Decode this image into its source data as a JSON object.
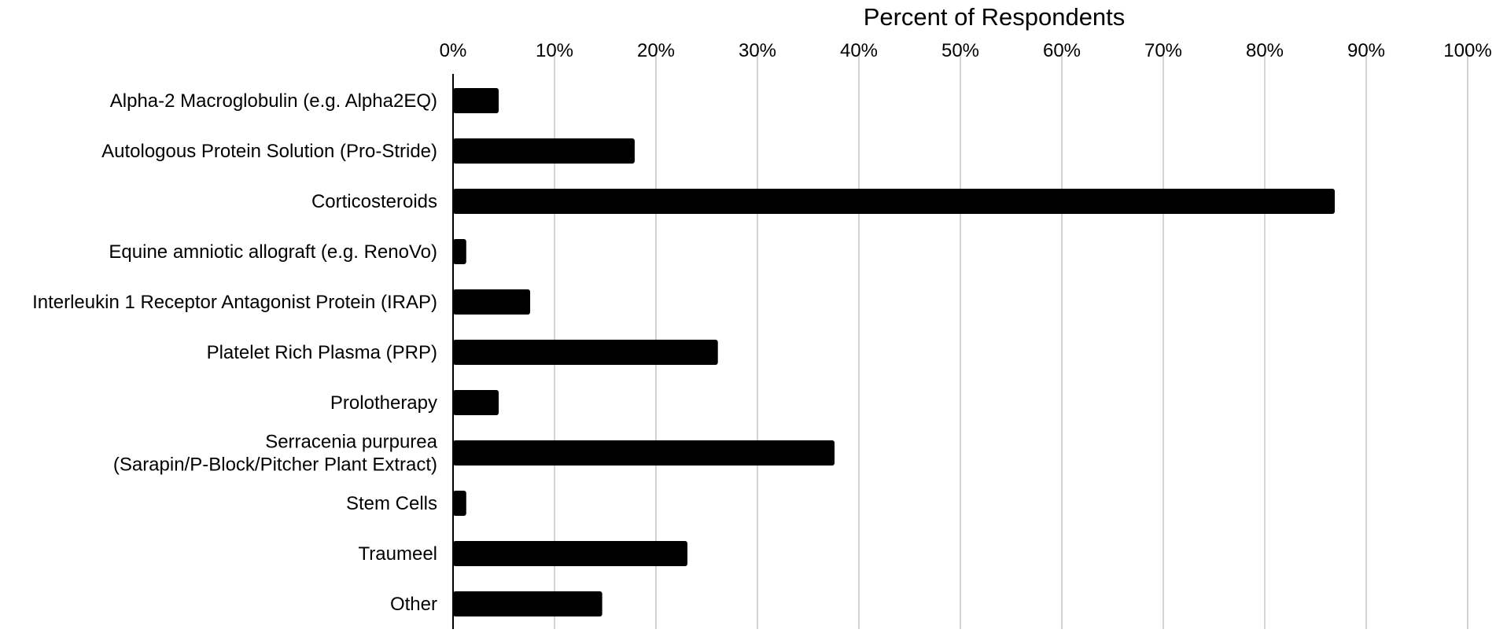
{
  "chart_data": {
    "type": "bar",
    "orientation": "horizontal",
    "title": "",
    "xlabel": "Percent of Respondents",
    "ylabel": "",
    "x_axis_position": "top",
    "xlim": [
      0,
      100
    ],
    "x_ticks": [
      "0%",
      "10%",
      "20%",
      "30%",
      "40%",
      "50%",
      "60%",
      "70%",
      "80%",
      "90%",
      "100%"
    ],
    "grid": "vertical",
    "legend": "none",
    "bar_color": "#000000",
    "categories": [
      "Alpha-2 Macroglobulin (e.g. Alpha2EQ)",
      "Autologous Protein Solution (Pro-Stride)",
      "Corticosteroids",
      "Equine amniotic allograft (e.g. RenoVo)",
      "Interleukin 1 Receptor Antagonist Protein (IRAP)",
      "Platelet Rich Plasma (PRP)",
      "Prolotherapy",
      "Serracenia purpurea\n(Sarapin/P-Block/Pitcher Plant Extract)",
      "Stem Cells",
      "Traumeel",
      "Other"
    ],
    "values": [
      4.5,
      17.9,
      86.9,
      1.3,
      7.6,
      26.1,
      4.5,
      37.6,
      1.3,
      23.1,
      14.7
    ]
  }
}
